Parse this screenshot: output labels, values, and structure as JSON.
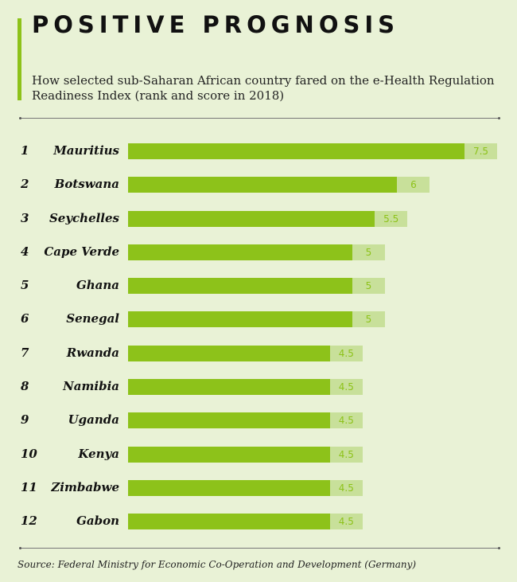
{
  "chart_data": {
    "type": "bar",
    "orientation": "horizontal",
    "title": "POSITIVE PROGNOSIS",
    "subtitle": "How selected sub-Saharan African country fared on the e-Health Regulation Readiness Index (rank and score in 2018)",
    "ranks": [
      "1",
      "2",
      "3",
      "4",
      "5",
      "6",
      "7",
      "8",
      "9",
      "10",
      "11",
      "12"
    ],
    "categories": [
      "Mauritius",
      "Botswana",
      "Seychelles",
      "Cape Verde",
      "Ghana",
      "Senegal",
      "Rwanda",
      "Namibia",
      "Uganda",
      "Kenya",
      "Zimbabwe",
      "Gabon"
    ],
    "values": [
      7.5,
      6,
      5.5,
      5,
      5,
      5,
      4.5,
      4.5,
      4.5,
      4.5,
      4.5,
      4.5
    ],
    "value_labels": [
      "7.5",
      "6",
      "5.5",
      "5",
      "5",
      "5",
      "4.5",
      "4.5",
      "4.5",
      "4.5",
      "4.5",
      "4.5"
    ],
    "xlim": [
      0,
      7.5
    ],
    "grid": false,
    "source": "Source: Federal Ministry for Economic Co-Operation and Development (Germany)",
    "colors": {
      "bar": "#8dc21a",
      "label_bg": "#c8e09a",
      "background": "#e9f2d6"
    }
  }
}
